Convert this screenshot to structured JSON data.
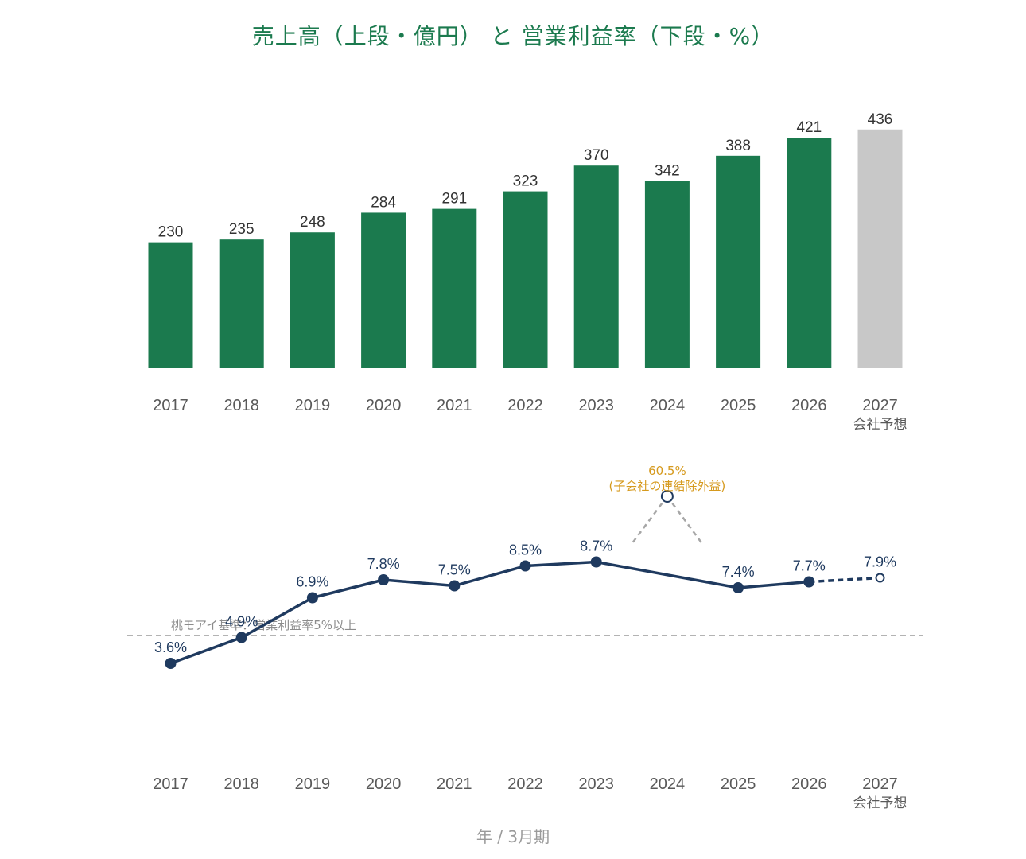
{
  "title": "売上高（上段・億円） と 営業利益率（下段・%）",
  "x_axis_title": "年 / 3月期",
  "forecast_tag": "会社予想",
  "colors": {
    "title": "#1b7a4e",
    "bar_actual": "#1b7a4e",
    "bar_forecast": "#c8c8c8",
    "line": "#1f3a5f",
    "annotation": "#d69a1e",
    "reference": "#9a9a9a"
  },
  "chart_data": [
    {
      "type": "bar",
      "categories": [
        "2017",
        "2018",
        "2019",
        "2020",
        "2021",
        "2022",
        "2023",
        "2024",
        "2025",
        "2026",
        "2027"
      ],
      "values": [
        230,
        235,
        248,
        284,
        291,
        323,
        370,
        342,
        388,
        421,
        436
      ],
      "value_labels": [
        "230",
        "235",
        "248",
        "284",
        "291",
        "323",
        "370",
        "342",
        "388",
        "421",
        "436"
      ],
      "forecast_flags": [
        false,
        false,
        false,
        false,
        false,
        false,
        false,
        false,
        false,
        false,
        true
      ],
      "ylim": [
        0,
        460
      ],
      "grid": false
    },
    {
      "type": "line",
      "categories": [
        "2017",
        "2018",
        "2019",
        "2020",
        "2021",
        "2022",
        "2023",
        "2024",
        "2025",
        "2026",
        "2027"
      ],
      "values": [
        3.6,
        4.9,
        6.9,
        7.8,
        7.5,
        8.5,
        8.7,
        null,
        7.4,
        7.7,
        7.9
      ],
      "value_labels": [
        "3.6%",
        "4.9%",
        "6.9%",
        "7.8%",
        "7.5%",
        "8.5%",
        "8.7%",
        "",
        "7.4%",
        "7.7%",
        "7.9%"
      ],
      "forecast_flags": [
        false,
        false,
        false,
        false,
        false,
        false,
        false,
        false,
        false,
        false,
        true
      ],
      "outlier": {
        "category": "2024",
        "value": 60.5,
        "label": "60.5%",
        "note": "(子会社の連結除外益)"
      },
      "reference_line": {
        "value": 5,
        "label": "桃モアイ基準：営業利益率5%以上"
      },
      "grid": false
    }
  ]
}
